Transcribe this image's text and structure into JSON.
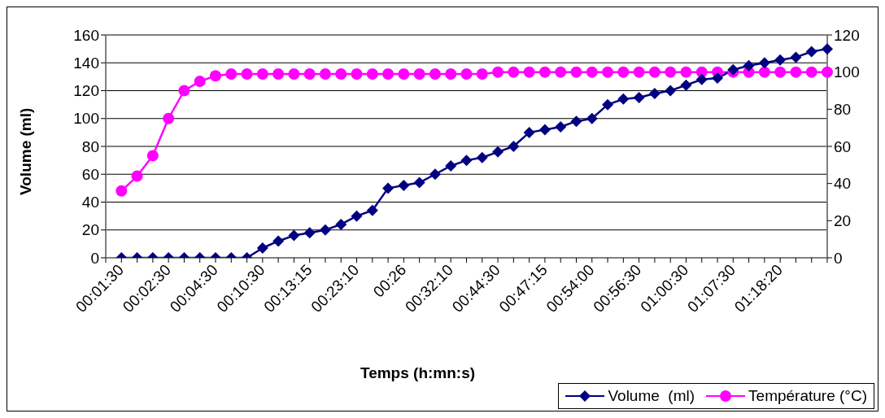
{
  "chart_data": {
    "type": "line",
    "xlabel": "Temps (h:mn:s)",
    "ylabel": "Volume (ml)",
    "categories": [
      null,
      "00:01:30",
      null,
      null,
      "00:02:30",
      null,
      null,
      "00:04:30",
      null,
      null,
      "00:10:30",
      null,
      null,
      "00:13:15",
      null,
      null,
      "00:23:10",
      null,
      null,
      "00:26",
      null,
      null,
      "00:32:10",
      null,
      null,
      "00:44:30",
      null,
      null,
      "00:47:15",
      null,
      null,
      "00:54:00",
      null,
      null,
      "00:56:30",
      null,
      null,
      "01:00:30",
      null,
      null,
      "01:07:30",
      null,
      null,
      "01:18:20",
      null,
      null,
      null
    ],
    "series": [
      {
        "name": "Volume  (ml)",
        "color": "#000080",
        "marker": "diamond",
        "values": [
          null,
          0,
          0,
          0,
          0,
          0,
          0,
          0,
          0,
          0,
          7,
          12,
          16,
          18,
          20,
          24,
          30,
          34,
          50,
          52,
          54,
          60,
          66,
          70,
          72,
          76,
          80,
          90,
          92,
          94,
          98,
          100,
          110,
          114,
          115,
          118,
          120,
          124,
          128,
          129,
          135,
          138,
          140,
          142,
          144,
          148,
          150
        ]
      },
      {
        "name": "Température (°C)",
        "color": "#ff00ff",
        "marker": "circle",
        "axis": "y2",
        "values": [
          null,
          36,
          44,
          55,
          75,
          90,
          95,
          98,
          99,
          99,
          99,
          99,
          99,
          99,
          99,
          99,
          99,
          99,
          99,
          99,
          99,
          99,
          99,
          99,
          99,
          100,
          100,
          100,
          100,
          100,
          100,
          100,
          100,
          100,
          100,
          100,
          100,
          100,
          100,
          100,
          100,
          100,
          100,
          100,
          100,
          100,
          100
        ]
      }
    ],
    "ylim": [
      0,
      160
    ],
    "yticks": [
      0,
      20,
      40,
      60,
      80,
      100,
      120,
      140,
      160
    ],
    "y2lim": [
      0,
      120
    ],
    "y2ticks": [
      0,
      20,
      40,
      60,
      80,
      100,
      120
    ],
    "grid": "y",
    "legend": "bottom right",
    "line_style": "solid"
  }
}
